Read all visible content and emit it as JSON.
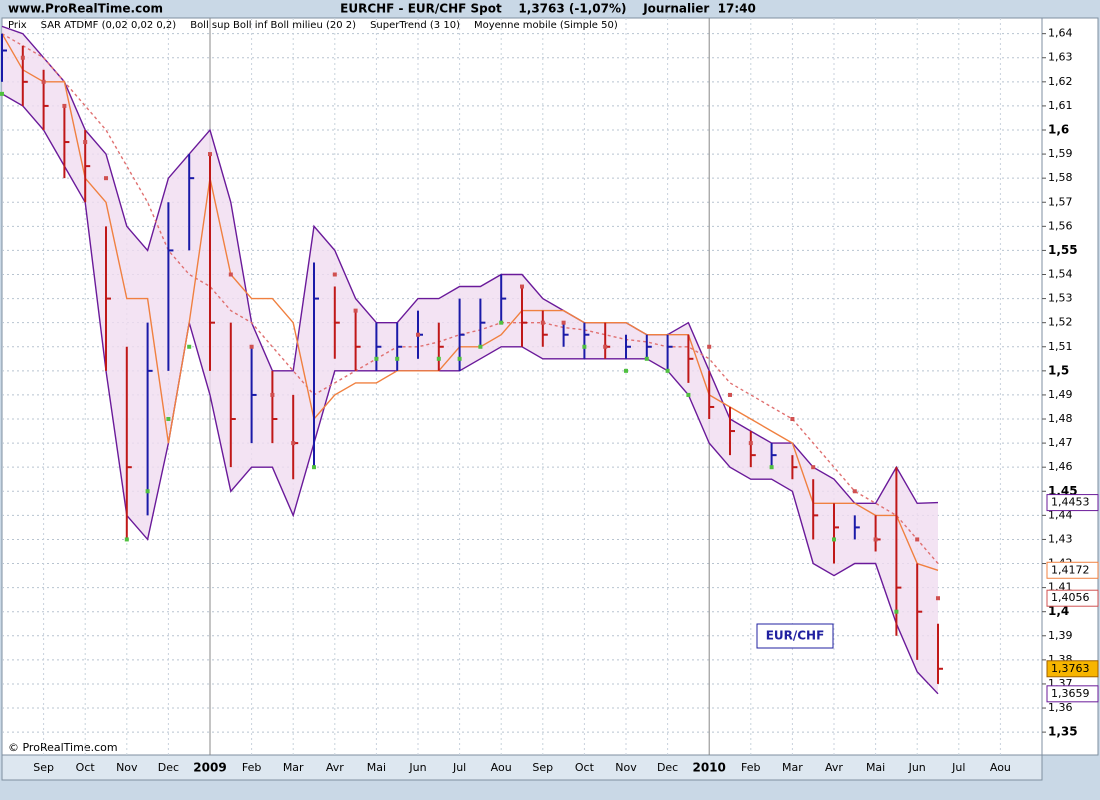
{
  "chart_data": {
    "type": "ohlc",
    "site": "www.ProRealTime.com",
    "title": "EURCHF - EUR/CHF Spot    1,3763 (-1,07%)    Journalier  17:40",
    "copyright": "© ProRealTime.com",
    "annotation": "EUR/CHF",
    "ylim": [
      1.3405,
      1.6465
    ],
    "yticks": [
      {
        "value": 1.35,
        "label": "1,35"
      },
      {
        "value": 1.36,
        "label": "1,36"
      },
      {
        "value": 1.37,
        "label": "1,37"
      },
      {
        "value": 1.38,
        "label": "1,38"
      },
      {
        "value": 1.39,
        "label": "1,39"
      },
      {
        "value": 1.4,
        "label": "1,4"
      },
      {
        "value": 1.41,
        "label": "1,41"
      },
      {
        "value": 1.42,
        "label": "1,42"
      },
      {
        "value": 1.43,
        "label": "1,43"
      },
      {
        "value": 1.44,
        "label": "1,44"
      },
      {
        "value": 1.45,
        "label": "1,45"
      },
      {
        "value": 1.46,
        "label": "1,46"
      },
      {
        "value": 1.47,
        "label": "1,47"
      },
      {
        "value": 1.48,
        "label": "1,48"
      },
      {
        "value": 1.49,
        "label": "1,49"
      },
      {
        "value": 1.5,
        "label": "1,5"
      },
      {
        "value": 1.51,
        "label": "1,51"
      },
      {
        "value": 1.52,
        "label": "1,52"
      },
      {
        "value": 1.53,
        "label": "1,53"
      },
      {
        "value": 1.54,
        "label": "1,54"
      },
      {
        "value": 1.55,
        "label": "1,55"
      },
      {
        "value": 1.56,
        "label": "1,56"
      },
      {
        "value": 1.57,
        "label": "1,57"
      },
      {
        "value": 1.58,
        "label": "1,58"
      },
      {
        "value": 1.59,
        "label": "1,59"
      },
      {
        "value": 1.6,
        "label": "1,6"
      },
      {
        "value": 1.61,
        "label": "1,61"
      },
      {
        "value": 1.62,
        "label": "1,62"
      },
      {
        "value": 1.63,
        "label": "1,63"
      },
      {
        "value": 1.64,
        "label": "1,64"
      }
    ],
    "grid": true,
    "categories": [
      null,
      null,
      "Sep",
      null,
      "Oct",
      null,
      "Nov",
      null,
      "Dec",
      null,
      "2009",
      null,
      "Feb",
      null,
      "Mar",
      null,
      "Avr",
      null,
      "Mai",
      null,
      "Jun",
      null,
      "Jul",
      null,
      "Aou",
      null,
      "Sep",
      null,
      "Oct",
      null,
      "Nov",
      null,
      "Dec",
      null,
      "2010",
      null,
      "Feb",
      null,
      "Mar",
      null,
      "Avr",
      null,
      "Mai",
      null,
      "Jun",
      null,
      "Jul",
      null,
      "Aou",
      null,
      null
    ],
    "series": [
      {
        "name": "Prix",
        "style": "ohlc",
        "color": "#1a1aa8",
        "down_color": "#c01818",
        "values": [
          1.633,
          1.62,
          1.61,
          1.595,
          1.585,
          1.53,
          1.46,
          1.5,
          1.55,
          1.58,
          1.52,
          1.48,
          1.49,
          1.48,
          1.47,
          1.53,
          1.52,
          1.51,
          1.51,
          1.51,
          1.515,
          1.51,
          1.515,
          1.52,
          1.53,
          1.52,
          1.515,
          1.515,
          1.515,
          1.51,
          1.51,
          1.51,
          1.51,
          1.505,
          1.485,
          1.475,
          1.465,
          1.465,
          1.46,
          1.44,
          1.435,
          1.435,
          1.43,
          1.41,
          1.4,
          1.3763,
          null,
          null,
          null,
          null,
          null
        ],
        "high": [
          1.64,
          1.635,
          1.625,
          1.61,
          1.6,
          1.56,
          1.51,
          1.52,
          1.57,
          1.59,
          1.59,
          1.52,
          1.51,
          1.5,
          1.49,
          1.545,
          1.535,
          1.525,
          1.52,
          1.52,
          1.525,
          1.52,
          1.53,
          1.53,
          1.54,
          1.535,
          1.525,
          1.52,
          1.52,
          1.52,
          1.515,
          1.515,
          1.515,
          1.515,
          1.5,
          1.485,
          1.475,
          1.47,
          1.465,
          1.455,
          1.445,
          1.44,
          1.44,
          1.46,
          1.42,
          1.395,
          null,
          null,
          null,
          null,
          null
        ],
        "low": [
          1.62,
          1.61,
          1.6,
          1.58,
          1.57,
          1.5,
          1.43,
          1.44,
          1.5,
          1.55,
          1.5,
          1.46,
          1.47,
          1.47,
          1.455,
          1.46,
          1.505,
          1.5,
          1.5,
          1.5,
          1.505,
          1.5,
          1.5,
          1.51,
          1.52,
          1.51,
          1.51,
          1.51,
          1.505,
          1.505,
          1.505,
          1.505,
          1.5,
          1.495,
          1.48,
          1.465,
          1.46,
          1.46,
          1.455,
          1.43,
          1.42,
          1.43,
          1.425,
          1.39,
          1.38,
          1.37,
          null,
          null,
          null,
          null,
          null
        ],
        "last_label": "1,3763"
      },
      {
        "name": "SAR ATDMF (0,02 0,02 0,2)",
        "style": "dots",
        "color": "#d05050",
        "up_color": "#50c040",
        "values": [
          1.615,
          1.63,
          1.62,
          1.61,
          1.595,
          1.58,
          1.43,
          1.45,
          1.48,
          1.51,
          1.59,
          1.54,
          1.51,
          1.49,
          1.47,
          1.46,
          1.54,
          1.525,
          1.505,
          1.505,
          1.515,
          1.505,
          1.505,
          1.51,
          1.52,
          1.535,
          1.52,
          1.52,
          1.51,
          1.51,
          1.5,
          1.505,
          1.5,
          1.49,
          1.51,
          1.49,
          1.47,
          1.46,
          1.48,
          1.46,
          1.43,
          1.45,
          1.43,
          1.4,
          1.43,
          1.4056,
          null,
          null,
          null,
          null,
          null
        ],
        "last_label": "1,4056"
      },
      {
        "name": "Boll sup Boll inf Boll milieu (20 2)",
        "style": "band",
        "color": "#6a1a9a",
        "fill": "#f0dcf0",
        "upper": [
          1.643,
          1.64,
          1.63,
          1.62,
          1.6,
          1.59,
          1.56,
          1.55,
          1.58,
          1.59,
          1.6,
          1.57,
          1.52,
          1.5,
          1.5,
          1.56,
          1.55,
          1.53,
          1.52,
          1.52,
          1.53,
          1.53,
          1.535,
          1.535,
          1.54,
          1.54,
          1.53,
          1.525,
          1.52,
          1.52,
          1.52,
          1.515,
          1.515,
          1.52,
          1.5,
          1.48,
          1.475,
          1.47,
          1.47,
          1.46,
          1.455,
          1.445,
          1.445,
          1.46,
          1.445,
          1.4453,
          null,
          null,
          null,
          null,
          null
        ],
        "lower": [
          1.615,
          1.61,
          1.6,
          1.585,
          1.57,
          1.5,
          1.44,
          1.43,
          1.47,
          1.52,
          1.49,
          1.45,
          1.46,
          1.46,
          1.44,
          1.47,
          1.5,
          1.5,
          1.5,
          1.5,
          1.5,
          1.5,
          1.5,
          1.505,
          1.51,
          1.51,
          1.505,
          1.505,
          1.505,
          1.505,
          1.505,
          1.505,
          1.5,
          1.49,
          1.47,
          1.46,
          1.455,
          1.455,
          1.45,
          1.42,
          1.415,
          1.42,
          1.42,
          1.395,
          1.375,
          1.3659,
          null,
          null,
          null,
          null,
          null
        ],
        "upper_label": "1,4453",
        "lower_label": "1,3659"
      },
      {
        "name": "SuperTrend (3 10)",
        "style": "line",
        "color": "#f08040",
        "values": [
          1.64,
          1.625,
          1.62,
          1.62,
          1.58,
          1.57,
          1.53,
          1.53,
          1.47,
          1.52,
          1.58,
          1.54,
          1.53,
          1.53,
          1.52,
          1.48,
          1.49,
          1.495,
          1.495,
          1.5,
          1.5,
          1.5,
          1.51,
          1.51,
          1.515,
          1.525,
          1.525,
          1.525,
          1.52,
          1.52,
          1.52,
          1.515,
          1.515,
          1.515,
          1.49,
          1.485,
          1.48,
          1.475,
          1.47,
          1.445,
          1.445,
          1.445,
          1.44,
          1.44,
          1.42,
          1.4172,
          null,
          null,
          null,
          null,
          null
        ],
        "last_label": "1,4172"
      },
      {
        "name": "Moyenne mobile (Simple 50)",
        "style": "dashed",
        "color": "#e07070",
        "values": [
          1.64,
          1.635,
          1.63,
          1.62,
          1.61,
          1.6,
          1.585,
          1.57,
          1.55,
          1.54,
          1.535,
          1.525,
          1.52,
          1.51,
          1.5,
          1.49,
          1.495,
          1.5,
          1.505,
          1.51,
          1.51,
          1.512,
          1.515,
          1.517,
          1.52,
          1.52,
          1.52,
          1.518,
          1.517,
          1.515,
          1.513,
          1.512,
          1.51,
          1.51,
          1.505,
          1.495,
          1.49,
          1.485,
          1.48,
          1.47,
          1.46,
          1.45,
          1.445,
          1.44,
          1.43,
          1.42,
          null,
          null,
          null,
          null,
          null
        ]
      }
    ]
  }
}
